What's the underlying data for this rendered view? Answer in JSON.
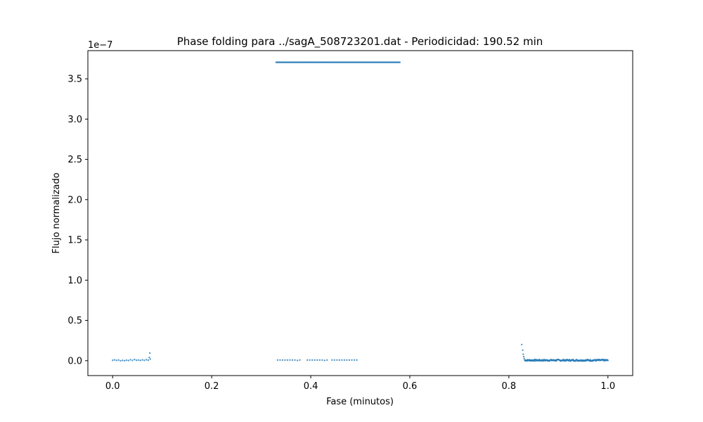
{
  "chart_data": {
    "type": "scatter",
    "title": "Phase folding para ../sagA_508723201.dat - Periodicidad: 190.52 min",
    "xlabel": "Fase (minutos)",
    "ylabel": "Flujo normalizado",
    "y_offset_label": "1e−7",
    "y_multiplier": 1e-07,
    "xlim": [
      -0.05,
      1.05
    ],
    "ylim": [
      -0.185,
      3.85
    ],
    "x_ticks": [
      0.0,
      0.2,
      0.4,
      0.6,
      0.8,
      1.0
    ],
    "x_tick_labels": [
      "0.0",
      "0.2",
      "0.4",
      "0.6",
      "0.8",
      "1.0"
    ],
    "y_ticks": [
      0.0,
      0.5,
      1.0,
      1.5,
      2.0,
      2.5,
      3.0,
      3.5
    ],
    "y_tick_labels": [
      "0.0",
      "0.5",
      "1.0",
      "1.5",
      "2.0",
      "2.5",
      "3.0",
      "3.5"
    ],
    "grid": false,
    "marker_color": "#1f77b4",
    "series": [
      {
        "name": "",
        "points": [
          [
            0.0,
            0.005
          ],
          [
            0.004,
            0.01
          ],
          [
            0.008,
            0.003
          ],
          [
            0.012,
            0.008
          ],
          [
            0.016,
            -0.002
          ],
          [
            0.02,
            0.004
          ],
          [
            0.024,
            0.0
          ],
          [
            0.028,
            0.006
          ],
          [
            0.032,
            0.002
          ],
          [
            0.036,
            0.012
          ],
          [
            0.04,
            0.003
          ],
          [
            0.044,
            0.015
          ],
          [
            0.048,
            0.005
          ],
          [
            0.052,
            0.008
          ],
          [
            0.056,
            0.003
          ],
          [
            0.06,
            0.01
          ],
          [
            0.064,
            0.004
          ],
          [
            0.068,
            0.012
          ],
          [
            0.072,
            0.006
          ],
          [
            0.074,
            0.04
          ],
          [
            0.075,
            0.095
          ],
          [
            0.076,
            0.02
          ],
          [
            0.333,
            0.008
          ],
          [
            0.338,
            0.008
          ],
          [
            0.343,
            0.008
          ],
          [
            0.348,
            0.008
          ],
          [
            0.353,
            0.008
          ],
          [
            0.358,
            0.008
          ],
          [
            0.363,
            0.008
          ],
          [
            0.368,
            0.008
          ],
          [
            0.373,
            0.003
          ],
          [
            0.378,
            0.008
          ],
          [
            0.393,
            0.008
          ],
          [
            0.398,
            0.008
          ],
          [
            0.403,
            0.008
          ],
          [
            0.408,
            0.008
          ],
          [
            0.413,
            0.008
          ],
          [
            0.418,
            0.008
          ],
          [
            0.423,
            0.008
          ],
          [
            0.428,
            0.003
          ],
          [
            0.433,
            0.008
          ],
          [
            0.443,
            0.008
          ],
          [
            0.448,
            0.008
          ],
          [
            0.453,
            0.008
          ],
          [
            0.458,
            0.008
          ],
          [
            0.463,
            0.008
          ],
          [
            0.468,
            0.008
          ],
          [
            0.473,
            0.008
          ],
          [
            0.478,
            0.008
          ],
          [
            0.483,
            0.008
          ],
          [
            0.488,
            0.008
          ],
          [
            0.493,
            0.008
          ],
          [
            0.826,
            0.2
          ],
          [
            0.828,
            0.13
          ],
          [
            0.829,
            0.08
          ],
          [
            0.83,
            0.05
          ],
          [
            0.831,
            0.025
          ]
        ],
        "dense_segments": [
          {
            "x_start": 0.33,
            "x_end": 0.58,
            "y": 3.705,
            "count": 180
          },
          {
            "x_start": 0.832,
            "x_end": 1.0,
            "y": 0.005,
            "count": 190,
            "scatter": 0.01
          }
        ]
      }
    ]
  }
}
